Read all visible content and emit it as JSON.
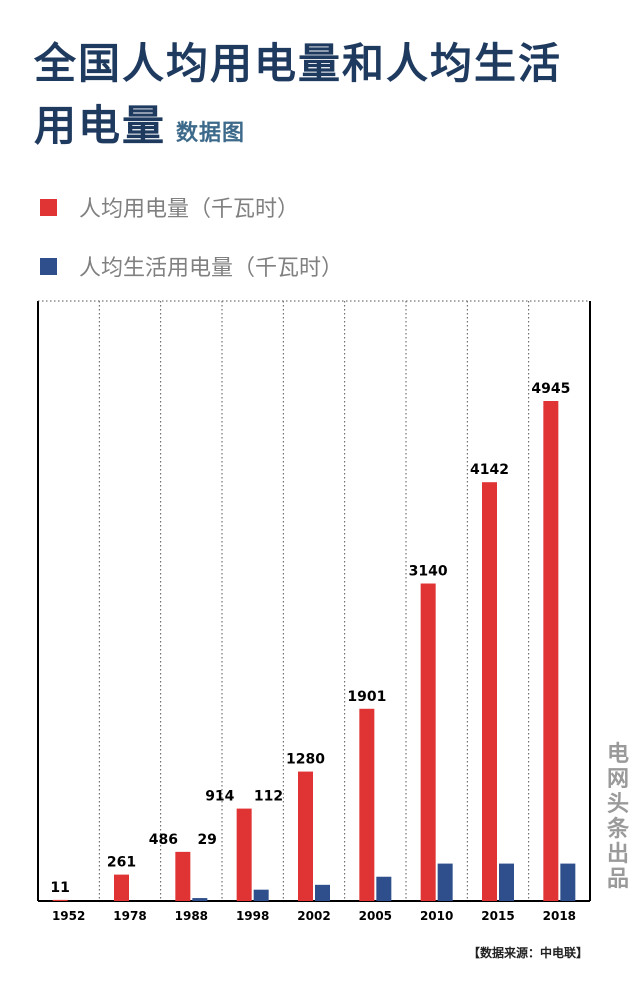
{
  "header": {
    "title_line1": "全国人均用电量和人均生活",
    "title_line2": "用电量",
    "subtitle": "数据图"
  },
  "legend": [
    {
      "label": "人均用电量（千瓦时）",
      "color": "#e03434"
    },
    {
      "label": "人均生活用电量（千瓦时）",
      "color": "#2e4f8c"
    }
  ],
  "watermark": "电网头条出品",
  "source": "【数据来源：中电联】",
  "chart_data": {
    "type": "bar",
    "categories": [
      "1952",
      "1978",
      "1988",
      "1998",
      "2002",
      "2005",
      "2010",
      "2015",
      "2018"
    ],
    "series": [
      {
        "name": "人均用电量（千瓦时）",
        "color": "#e03434",
        "values": [
          11,
          261,
          486,
          914,
          1280,
          1901,
          3140,
          4142,
          4945
        ]
      },
      {
        "name": "人均生活用电量（千瓦时）",
        "color": "#2e4f8c",
        "values": [
          0,
          0,
          29,
          112,
          160,
          240,
          370,
          370,
          370
        ]
      }
    ],
    "data_labels": [
      "11",
      "261",
      "486    29",
      "914    112",
      "1280",
      "1901",
      "3140",
      "4142",
      "4945"
    ],
    "ylim": [
      0,
      6000
    ],
    "grid": "vertical dotted"
  }
}
